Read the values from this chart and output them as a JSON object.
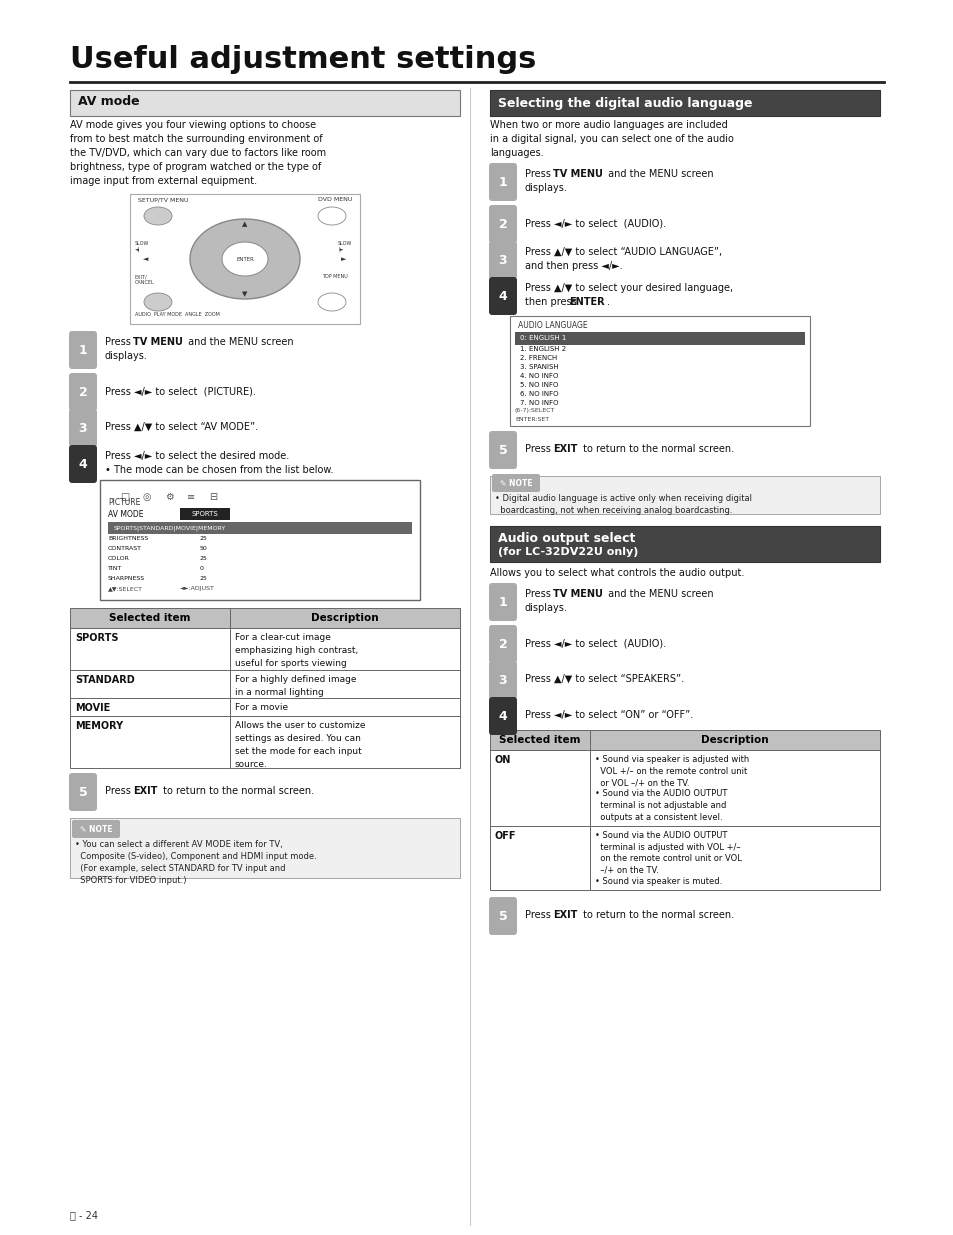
{
  "title": "Useful adjustment settings",
  "bg": "#ffffff",
  "av": {
    "header": "AV mode",
    "body": [
      "AV mode gives you four viewing options to choose",
      "from to best match the surrounding environment of",
      "the TV/DVD, which can vary due to factors like room",
      "brightness, type of program watched or the type of",
      "image input from external equipment."
    ],
    "s1a": "Press ",
    "s1b": "TV MENU",
    "s1c": " and the MENU screen",
    "s1d": "displays.",
    "s2": "Press ◄/► to select  (PICTURE).",
    "s3": "Press ▲/▼ to select “AV MODE”.",
    "s4a": "Press ◄/► to select the desired mode.",
    "s4b": "• The mode can be chosen from the list below.",
    "s5a": "Press ",
    "s5b": "EXIT",
    "s5c": " to return to the normal screen.",
    "screen_settings": [
      [
        "BRIGHTNESS",
        "25"
      ],
      [
        "CONTRAST",
        "50"
      ],
      [
        "COLOR",
        "25"
      ],
      [
        "TINT",
        "0"
      ],
      [
        "SHARPNESS",
        "25"
      ]
    ],
    "table_h1": "Selected item",
    "table_h2": "Description",
    "rows": [
      [
        "SPORTS",
        [
          "For a clear-cut image",
          "emphasizing high contrast,",
          "useful for sports viewing"
        ]
      ],
      [
        "STANDARD",
        [
          "For a highly defined image",
          "in a normal lighting"
        ]
      ],
      [
        "MOVIE",
        [
          "For a movie"
        ]
      ],
      [
        "MEMORY",
        [
          "Allows the user to customize",
          "settings as desired. You can",
          "set the mode for each input",
          "source."
        ]
      ]
    ],
    "note_title": "NOTE",
    "note_lines": [
      "• You can select a different AV MODE item for TV,",
      "  Composite (S-video), Component and HDMI input mode.",
      "  (For example, select STANDARD for TV input and",
      "  SPORTS for VIDEO input.)"
    ]
  },
  "da": {
    "header": "Selecting the digital audio language",
    "body": [
      "When two or more audio languages are included",
      "in a digital signal, you can select one of the audio",
      "languages."
    ],
    "s1a": "Press ",
    "s1b": "TV MENU",
    "s1c": " and the MENU screen",
    "s1d": "displays.",
    "s2": "Press ◄/► to select  (AUDIO).",
    "s3a": "Press ▲/▼ to select “AUDIO LANGUAGE”,",
    "s3b": "and then press ◄/►.",
    "s4a": "Press ▲/▼ to select your desired language,",
    "s4b": "then press ",
    "s4c": "ENTER",
    "s4d": ".",
    "s5a": "Press ",
    "s5b": "EXIT",
    "s5c": " to return to the normal screen.",
    "lang_list": [
      "0: ENGLISH 1",
      "1. ENGLISH 2",
      "2. FRENCH",
      "3. SPANISH",
      "4. NO INFO",
      "5. NO INFO",
      "6. NO INFO",
      "7. NO INFO"
    ],
    "note_title": "NOTE",
    "note_lines": [
      "• Digital audio language is active only when receiving digital",
      "  boardcasting, not when receiving analog boardcasting."
    ]
  },
  "ao": {
    "header1": "Audio output select",
    "header2": "(for LC-32DV22U only)",
    "body": "Allows you to select what controls the audio output.",
    "s1a": "Press ",
    "s1b": "TV MENU",
    "s1c": " and the MENU screen",
    "s1d": "displays.",
    "s2": "Press ◄/► to select  (AUDIO).",
    "s3": "Press ▲/▼ to select “SPEAKERS”.",
    "s4": "Press ◄/► to select “ON” or “OFF”.",
    "s5a": "Press ",
    "s5b": "EXIT",
    "s5c": " to return to the normal screen.",
    "table_h1": "Selected item",
    "table_h2": "Description",
    "rows": [
      [
        "ON",
        [
          "• Sound via speaker is adjusted with",
          "  VOL +/– on the remote control unit",
          "  or VOL –/+ on the TV.",
          "• Sound via the AUDIO OUTPUT",
          "  terminal is not adjustable and",
          "  outputs at a consistent level."
        ]
      ],
      [
        "OFF",
        [
          "• Sound via the AUDIO OUTPUT",
          "  terminal is adjusted with VOL +/–",
          "  on the remote control unit or VOL",
          "  –/+ on the TV.",
          "• Sound via speaker is muted."
        ]
      ]
    ]
  },
  "footer": "ⓔ - 24"
}
